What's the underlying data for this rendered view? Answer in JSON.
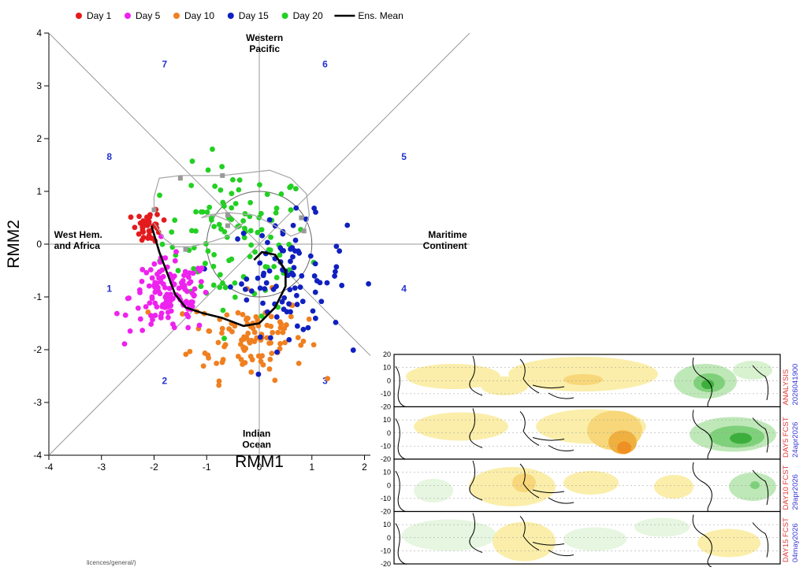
{
  "chart_data": {
    "type": "scatter",
    "title": "",
    "xlabel": "RMM1",
    "ylabel": "RMM2",
    "xlim": [
      -4,
      4
    ],
    "ylim": [
      -4,
      4
    ],
    "xticks": [
      "-4",
      "-3",
      "-2",
      "-1",
      "0",
      "1",
      "2"
    ],
    "yticks": [
      "4",
      "3",
      "2",
      "1",
      "0",
      "-1",
      "-2",
      "-3",
      "-4"
    ],
    "legend_position": "top",
    "legend": [
      {
        "name": "Day 1",
        "color": "#e41a1c",
        "kind": "dot"
      },
      {
        "name": "Day 5",
        "color": "#ee22ee",
        "kind": "dot"
      },
      {
        "name": "Day 10",
        "color": "#f07f20",
        "kind": "dot"
      },
      {
        "name": "Day 15",
        "color": "#1020c0",
        "kind": "dot"
      },
      {
        "name": "Day 20",
        "color": "#22d022",
        "kind": "dot"
      },
      {
        "name": "Ens. Mean",
        "color": "#000000",
        "kind": "line"
      }
    ],
    "phase_numbers": [
      {
        "label": "1",
        "x": -2.85,
        "y": -0.9
      },
      {
        "label": "2",
        "x": -1.8,
        "y": -2.65
      },
      {
        "label": "3",
        "x": 1.25,
        "y": -2.65
      },
      {
        "label": "4",
        "x": 2.75,
        "y": -0.9
      },
      {
        "label": "5",
        "x": 2.75,
        "y": 1.6
      },
      {
        "label": "6",
        "x": 1.25,
        "y": 3.35
      },
      {
        "label": "7",
        "x": -1.8,
        "y": 3.35
      },
      {
        "label": "8",
        "x": -2.85,
        "y": 1.6
      }
    ],
    "region_labels": [
      {
        "lines": [
          "Western",
          "Pacific"
        ],
        "x": 0.1,
        "y": 3.85,
        "anchor": "middle"
      },
      {
        "lines": [
          "Indian",
          "Ocean"
        ],
        "x": -0.05,
        "y": -3.65,
        "anchor": "middle"
      },
      {
        "lines": [
          "West Hem.",
          "and Africa"
        ],
        "x": -3.9,
        "y": 0.12,
        "anchor": "start"
      },
      {
        "lines": [
          "Maritime",
          "Continent"
        ],
        "x": 3.95,
        "y": 0.12,
        "anchor": "end"
      }
    ],
    "analysis_path": {
      "x": [
        -2.0,
        -2.0,
        -1.9,
        -1.5,
        -0.7,
        0.2,
        0.6,
        0.9,
        0.95,
        0.85,
        0.6,
        0.3,
        -0.1,
        -0.6,
        -1.0,
        -1.1,
        -0.85,
        -0.6,
        -0.45,
        -0.3,
        -0.6,
        -0.9,
        -1.3,
        -1.6,
        -1.8,
        -2.0
      ],
      "y": [
        0.65,
        0.9,
        1.25,
        1.3,
        1.3,
        1.4,
        1.25,
        0.95,
        0.55,
        0.25,
        0.15,
        0.35,
        0.55,
        0.6,
        0.55,
        0.5,
        0.55,
        0.45,
        0.3,
        0.4,
        0.15,
        0.05,
        -0.05,
        -0.05,
        0.1,
        0.4
      ]
    },
    "analysis_markers": {
      "x": [
        -2.0,
        -1.5,
        -0.7,
        -0.6,
        0.8,
        0.85,
        -0.6,
        -1.4
      ],
      "y": [
        0.65,
        1.25,
        1.3,
        0.55,
        0.5,
        0.25,
        0.35,
        -0.1
      ]
    },
    "ens_mean": {
      "x": [
        -2.05,
        -1.9,
        -1.75,
        -1.6,
        -1.4,
        -1.1,
        -0.7,
        -0.3,
        0.0,
        0.3,
        0.5,
        0.5,
        0.3,
        0.05,
        -0.1
      ],
      "y": [
        0.35,
        -0.15,
        -0.55,
        -0.95,
        -1.2,
        -1.3,
        -1.4,
        -1.55,
        -1.5,
        -1.2,
        -0.8,
        -0.5,
        -0.2,
        -0.15,
        -0.3
      ]
    },
    "scatter_series": [
      {
        "name": "Day 1",
        "color": "#e41a1c",
        "cx": -2.1,
        "cy": 0.35,
        "sx": 0.12,
        "sy": 0.16,
        "count": 40
      },
      {
        "name": "Day 5",
        "color": "#ee22ee",
        "cx": -1.7,
        "cy": -1.0,
        "sx": 0.38,
        "sy": 0.35,
        "count": 130
      },
      {
        "name": "Day 10",
        "color": "#f07f20",
        "cx": -0.2,
        "cy": -1.75,
        "sx": 0.55,
        "sy": 0.4,
        "count": 110
      },
      {
        "name": "Day 15",
        "color": "#1020c0",
        "cx": 0.55,
        "cy": -0.6,
        "sx": 0.55,
        "sy": 0.55,
        "count": 95
      },
      {
        "name": "Day 20",
        "color": "#22d022",
        "cx": -0.45,
        "cy": 0.05,
        "sx": 0.7,
        "sy": 0.7,
        "count": 110
      }
    ]
  },
  "maps": {
    "panels": [
      {
        "line1": "ANALYSIS",
        "line2": "2026041900"
      },
      {
        "line1": "DAY5 FCST",
        "line2": "24apr2026"
      },
      {
        "line1": "DAY10 FCST",
        "line2": "29apr2026"
      },
      {
        "line1": "DAY15 FCST",
        "line2": "04may2026"
      }
    ],
    "lat_ticks": [
      "20",
      "10",
      "0",
      "-10",
      "-20"
    ]
  },
  "footer": "licences/general/)"
}
